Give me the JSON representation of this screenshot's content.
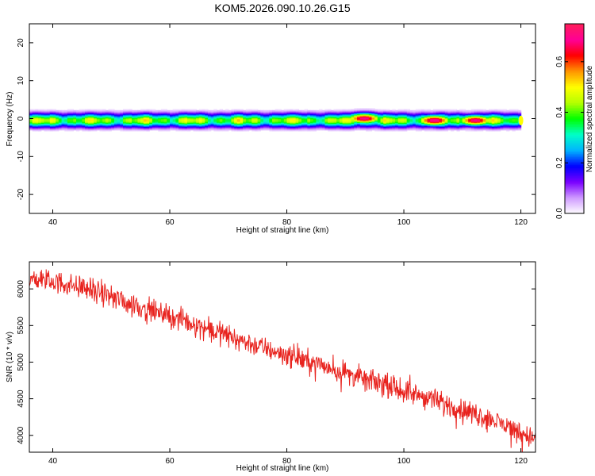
{
  "title": "KOM5.2026.090.10.26.G15",
  "chart_data": [
    {
      "type": "heatmap",
      "xlabel": "Height of straight line (km)",
      "ylabel": "Frequency (Hz)",
      "xlim": [
        36,
        122.5
      ],
      "ylim": [
        -25,
        25
      ],
      "xticks": [
        "40",
        "60",
        "80",
        "100",
        "120"
      ],
      "yticks": [
        "-20",
        "-10",
        "0",
        "10",
        "20"
      ],
      "grid": false,
      "data_extent_km": [
        36,
        120
      ],
      "band_center_hz": -0.5,
      "band_halfwidth_hz": 3,
      "hot_spots": [
        {
          "x": 93,
          "y": 0,
          "amplitude": 0.7
        },
        {
          "x": 105,
          "y": -0.5,
          "amplitude": 0.72
        },
        {
          "x": 112,
          "y": -0.5,
          "amplitude": 0.7
        }
      ],
      "colorbar": {
        "label": "Normalized spectral amplitude",
        "range": [
          0,
          0.75
        ],
        "ticks": [
          "0.0",
          "0.2",
          "0.4",
          "0.6"
        ],
        "stops": [
          "#ffffff",
          "#cf9bff",
          "#7a00ff",
          "#0000ff",
          "#00b4ff",
          "#00ffc8",
          "#00ff00",
          "#b4ff00",
          "#ffff00",
          "#ff9600",
          "#ff0000",
          "#ff0096",
          "#ff1e5a"
        ]
      }
    },
    {
      "type": "line",
      "xlabel": "Height of straight line (km)",
      "ylabel": "SNR (10 * v/v)",
      "xlim": [
        36,
        122.5
      ],
      "ylim": [
        3770,
        6370
      ],
      "xticks": [
        "40",
        "60",
        "80",
        "100",
        "120"
      ],
      "yticks": [
        "4000",
        "4500",
        "5000",
        "5500",
        "6000"
      ],
      "grid": false,
      "color": "#e8231e",
      "trend_points": [
        {
          "x": 36,
          "y": 6150
        },
        {
          "x": 45,
          "y": 6030
        },
        {
          "x": 55,
          "y": 5750
        },
        {
          "x": 65,
          "y": 5500
        },
        {
          "x": 75,
          "y": 5220
        },
        {
          "x": 85,
          "y": 4980
        },
        {
          "x": 95,
          "y": 4730
        },
        {
          "x": 105,
          "y": 4480
        },
        {
          "x": 115,
          "y": 4220
        },
        {
          "x": 122.5,
          "y": 3950
        }
      ],
      "noise_amplitude": 170
    }
  ]
}
